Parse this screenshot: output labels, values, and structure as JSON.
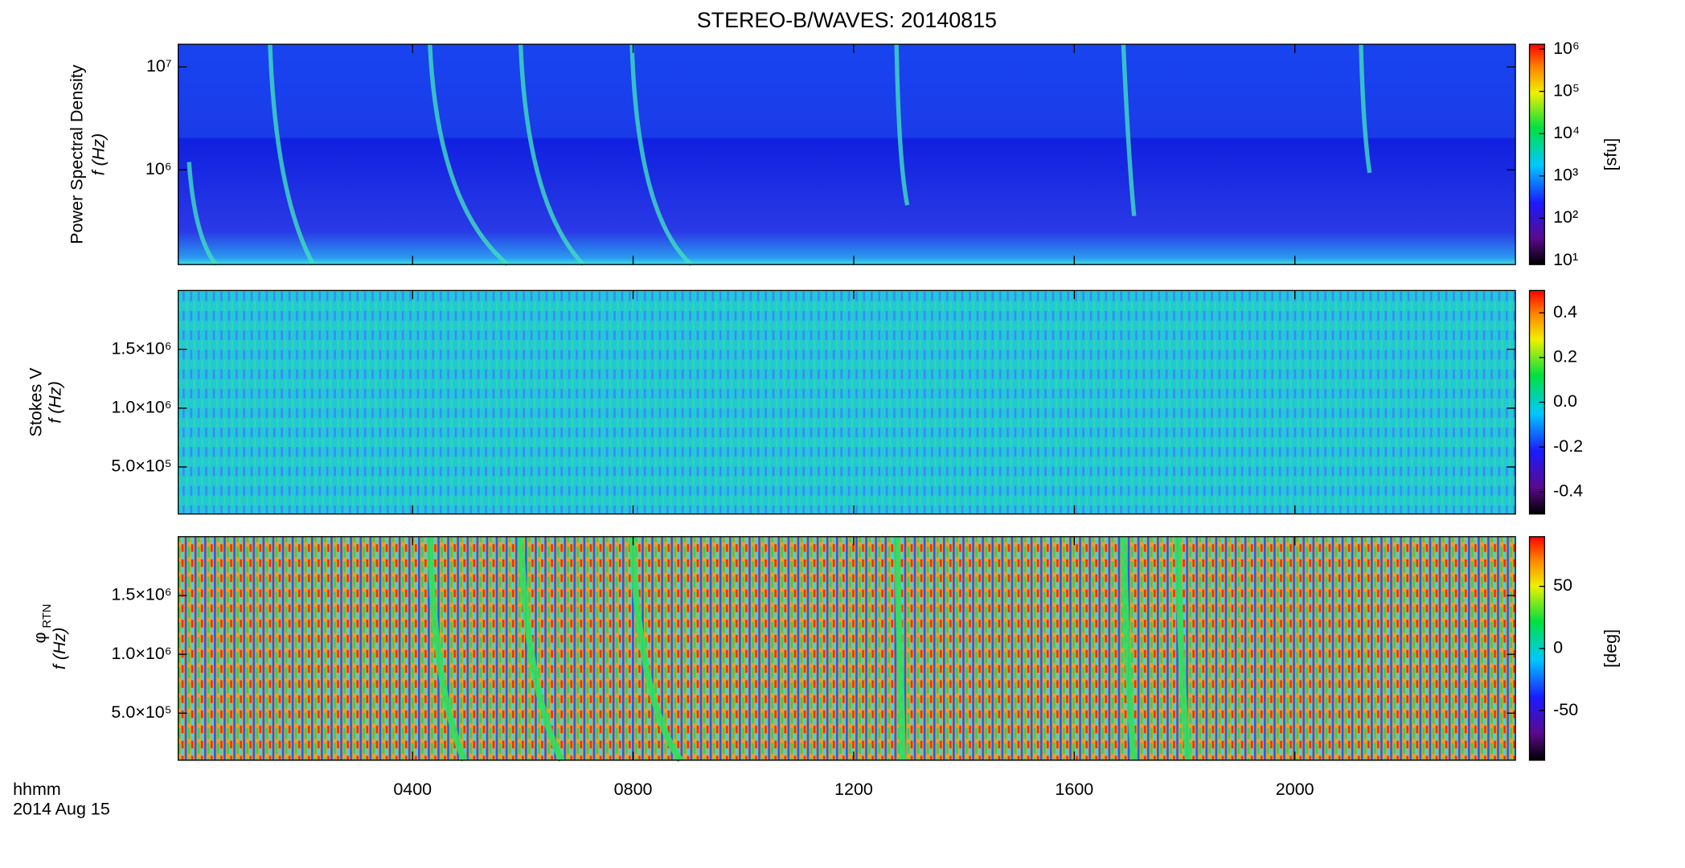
{
  "title": "STEREO-B/WAVES: 20140815",
  "xaxis": {
    "label": "hhmm",
    "date": "2014 Aug 15",
    "xlim": [
      -0.25,
      24
    ],
    "xticks": [
      {
        "value": 4,
        "label": "0400"
      },
      {
        "value": 8,
        "label": "0800"
      },
      {
        "value": 12,
        "label": "1200"
      },
      {
        "value": 16,
        "label": "1600"
      },
      {
        "value": 20,
        "label": "2000"
      }
    ]
  },
  "chart_data": [
    {
      "type": "spectrogram",
      "ylabel": "Power Spectral Density",
      "ylabel2": "f (Hz)",
      "log_y": true,
      "ylim": [
        120000,
        16600000
      ],
      "yticks": [
        {
          "value": 1000000,
          "label": "10⁶"
        },
        {
          "value": 10000000,
          "label": "10⁷"
        }
      ],
      "colorbar": {
        "label": "[sfu]",
        "log": true,
        "lim": [
          8,
          1300000
        ],
        "ticks": [
          {
            "value": 10,
            "label": "10¹"
          },
          {
            "value": 100,
            "label": "10²"
          },
          {
            "value": 1000,
            "label": "10³"
          },
          {
            "value": 10000,
            "label": "10⁴"
          },
          {
            "value": 100000,
            "label": "10⁵"
          },
          {
            "value": 1000000,
            "label": "10⁶"
          }
        ]
      }
    },
    {
      "type": "spectrogram",
      "ylabel": "Stokes V",
      "ylabel2": "f (Hz)",
      "log_y": false,
      "ylim": [
        100000,
        2000000
      ],
      "yticks": [
        {
          "value": 500000,
          "label": "5.0×10⁵"
        },
        {
          "value": 1000000,
          "label": "1.0×10⁶"
        },
        {
          "value": 1500000,
          "label": "1.5×10⁶"
        }
      ],
      "colorbar": {
        "log": false,
        "lim": [
          -0.5,
          0.5
        ],
        "ticks": [
          -0.4,
          -0.2,
          {
            "value": 0,
            "label": "0.0"
          },
          0.2,
          0.4
        ]
      }
    },
    {
      "type": "spectrogram",
      "ylabel": "φ",
      "ylabel_sub": "RTN",
      "ylabel2": "f (Hz)",
      "log_y": false,
      "ylim": [
        100000,
        2000000
      ],
      "yticks": [
        {
          "value": 500000,
          "label": "5.0×10⁵"
        },
        {
          "value": 1000000,
          "label": "1.0×10⁶"
        },
        {
          "value": 1500000,
          "label": "1.5×10⁶"
        }
      ],
      "colorbar": {
        "label": "[deg]",
        "log": false,
        "lim": [
          -90,
          90
        ],
        "ticks": [
          -50,
          0,
          50
        ]
      }
    }
  ]
}
